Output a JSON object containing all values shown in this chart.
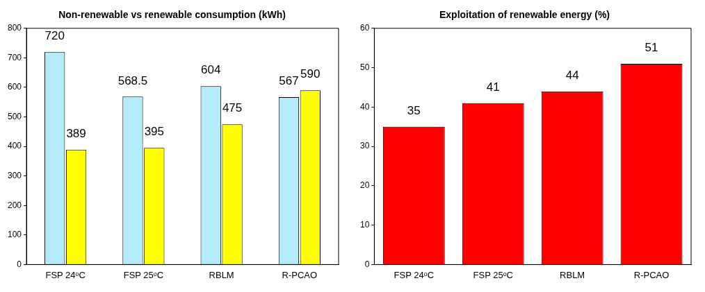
{
  "chart_data": [
    {
      "type": "bar",
      "title": "Non-renewable vs renewable consumption (kWh)",
      "categories": [
        "FSP 24ᵒC",
        "FSP 25ᵒC",
        "RBLM",
        "R-PCAO"
      ],
      "series": [
        {
          "color": "#b3ebfb",
          "values": [
            720,
            568.5,
            604,
            567
          ]
        },
        {
          "color": "#ffff00",
          "values": [
            389,
            395,
            475,
            590
          ]
        }
      ],
      "ylim": [
        0,
        800
      ],
      "yticks": [
        0,
        100,
        200,
        300,
        400,
        500,
        600,
        700,
        800
      ],
      "grid": false,
      "legend": false,
      "data_labels": true
    },
    {
      "type": "bar",
      "title": "Exploitation of renewable energy (%)",
      "categories": [
        "FSP 24ᵒC",
        "FSP 25ᵒC",
        "RBLM",
        "R-PCAO"
      ],
      "series": [
        {
          "color": "#ff0000",
          "values": [
            35,
            41,
            44,
            51
          ]
        }
      ],
      "ylim": [
        0,
        60
      ],
      "yticks": [
        0,
        10,
        20,
        30,
        40,
        50,
        60
      ],
      "grid": false,
      "legend": false,
      "data_labels": true
    }
  ]
}
